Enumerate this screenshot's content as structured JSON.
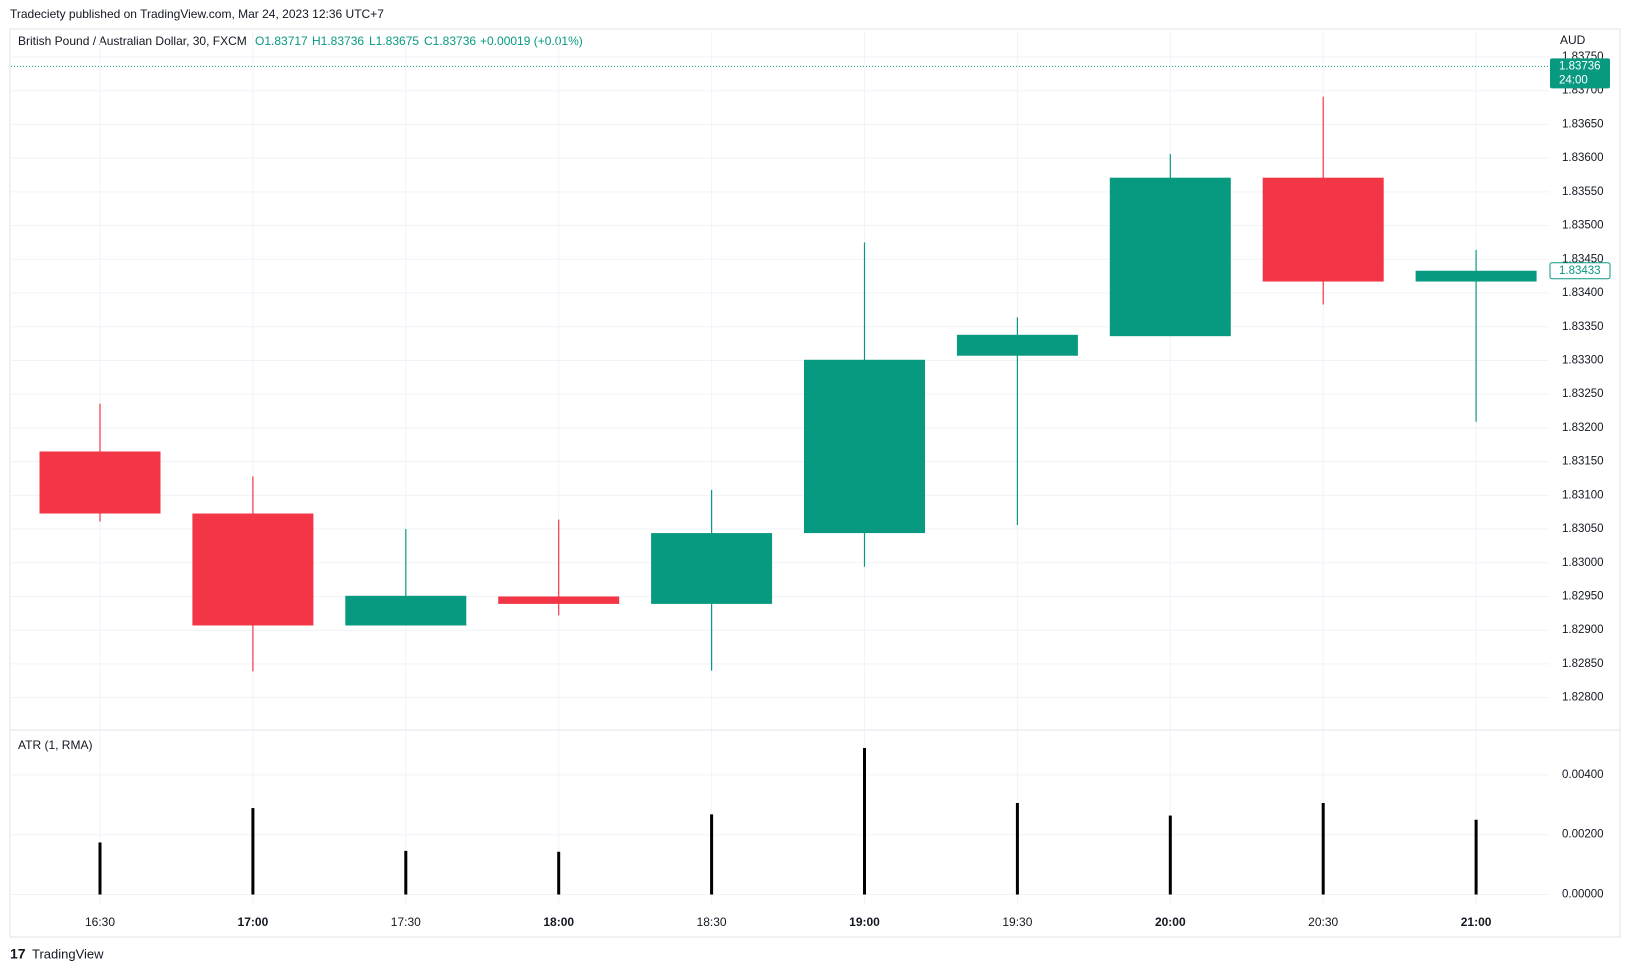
{
  "header": {
    "published": "Tradeciety published on TradingView.com, Mar 24, 2023 12:36 UTC+7"
  },
  "footer": {
    "brand": "TradingView"
  },
  "chart_data": [
    {
      "type": "candlestick",
      "title": "British Pound / Australian Dollar, 30, FXCM",
      "legend_values": [
        "O1.83717",
        "H1.83736",
        "L1.83675",
        "C1.83736",
        "+0.00019 (+0.01%)"
      ],
      "y_axis_label": "AUD",
      "categories": [
        "16:30",
        "17:00",
        "17:30",
        "18:00",
        "18:30",
        "19:00",
        "19:30",
        "20:00",
        "20:30",
        "21:00"
      ],
      "open": [
        1.83165,
        1.83073,
        1.82907,
        1.8295,
        1.82939,
        1.83044,
        1.83307,
        1.83336,
        1.83571,
        1.83417
      ],
      "high": [
        1.83236,
        1.83128,
        1.8305,
        1.83064,
        1.83108,
        1.83475,
        1.83364,
        1.83606,
        1.83691,
        1.83464
      ],
      "low": [
        1.83061,
        1.82839,
        1.82907,
        1.82922,
        1.8284,
        1.82994,
        1.83056,
        1.83336,
        1.83383,
        1.83209
      ],
      "close": [
        1.83073,
        1.82907,
        1.82951,
        1.82939,
        1.83044,
        1.83301,
        1.83338,
        1.83571,
        1.83417,
        1.83433
      ],
      "up_color": "#089981",
      "down_color": "#f23645",
      "ylim": [
        1.82752,
        1.8379
      ],
      "yticks": [
        {
          "value": 1.8375,
          "label": "1.83750"
        },
        {
          "value": 1.837,
          "label": "1.83700"
        },
        {
          "value": 1.8365,
          "label": "1.83650"
        },
        {
          "value": 1.836,
          "label": "1.83600"
        },
        {
          "value": 1.8355,
          "label": "1.83550"
        },
        {
          "value": 1.835,
          "label": "1.83500"
        },
        {
          "value": 1.8345,
          "label": "1.83450"
        },
        {
          "value": 1.834,
          "label": "1.83400"
        },
        {
          "value": 1.8335,
          "label": "1.83350"
        },
        {
          "value": 1.833,
          "label": "1.83300"
        },
        {
          "value": 1.8325,
          "label": "1.83250"
        },
        {
          "value": 1.832,
          "label": "1.83200"
        },
        {
          "value": 1.8315,
          "label": "1.83150"
        },
        {
          "value": 1.831,
          "label": "1.83100"
        },
        {
          "value": 1.8305,
          "label": "1.83050"
        },
        {
          "value": 1.83,
          "label": "1.83000"
        },
        {
          "value": 1.8295,
          "label": "1.82950"
        },
        {
          "value": 1.829,
          "label": "1.82900"
        },
        {
          "value": 1.8285,
          "label": "1.82850"
        },
        {
          "value": 1.828,
          "label": "1.82800"
        }
      ],
      "grid": true,
      "last_price": {
        "value": 1.83736,
        "label": "1.83736",
        "countdown": "24:00"
      },
      "marker_price": {
        "value": 1.83433,
        "label": "1.83433"
      }
    },
    {
      "type": "bar",
      "title": "ATR (1, RMA)",
      "values": [
        0.00174,
        0.00289,
        0.00146,
        0.00143,
        0.00268,
        0.0049,
        0.00306,
        0.00264,
        0.00306,
        0.0025
      ],
      "color": "#000000",
      "ylim": [
        -0.00035,
        0.0055
      ],
      "yticks": [
        {
          "value": 0,
          "label": "0.00000"
        },
        {
          "value": 0.002,
          "label": "0.00200"
        },
        {
          "value": 0.004,
          "label": "0.00400"
        }
      ],
      "grid": true
    }
  ]
}
